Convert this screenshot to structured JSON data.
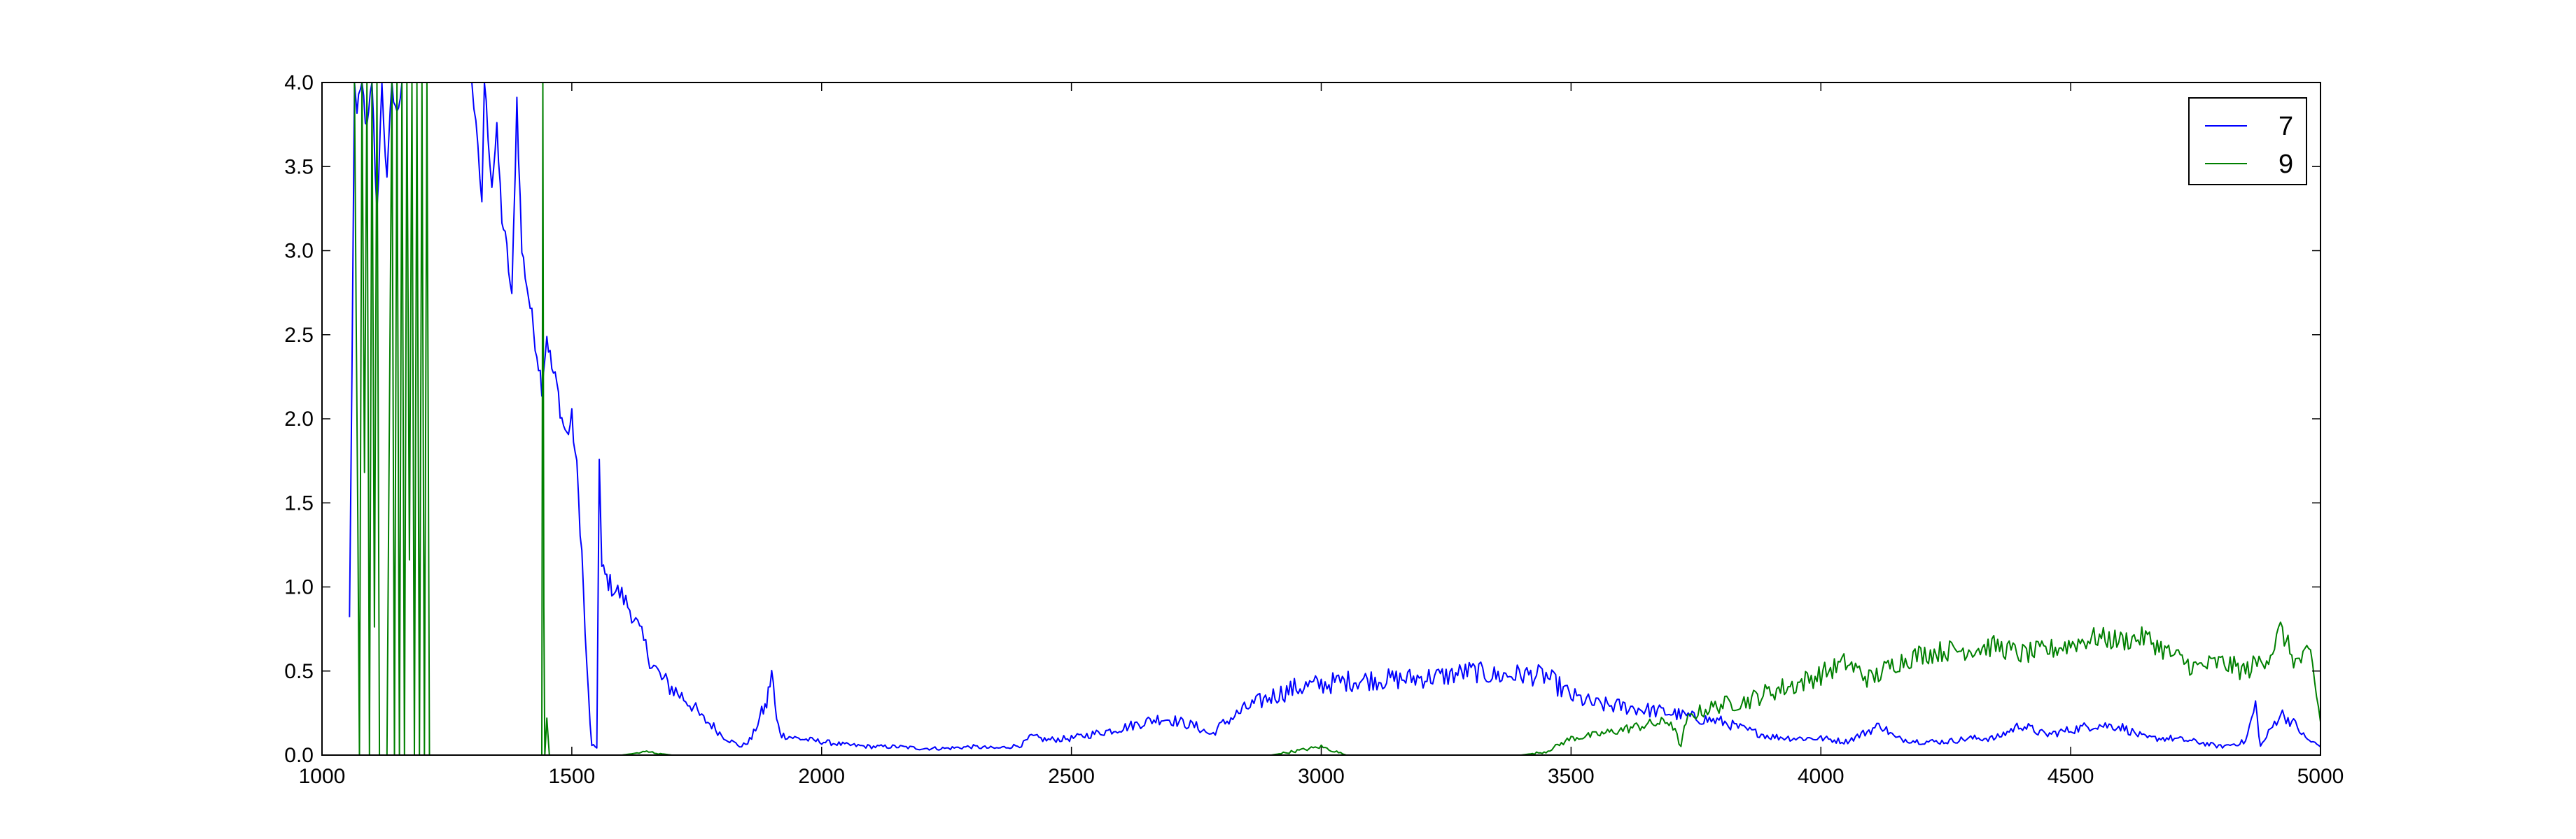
{
  "chart_data": {
    "type": "line",
    "title": "",
    "xlabel": "",
    "ylabel": "",
    "xlim": [
      1000,
      5000
    ],
    "ylim": [
      0.0,
      4.0
    ],
    "grid": false,
    "legend_placement": "top-right",
    "x_ticks": [
      "1000",
      "1500",
      "2000",
      "2500",
      "3000",
      "3500",
      "4000",
      "4500",
      "5000"
    ],
    "y_ticks": [
      "0.0",
      "0.5",
      "1.0",
      "1.5",
      "2.0",
      "2.5",
      "3.0",
      "3.5",
      "4.0"
    ],
    "series": [
      {
        "name": "7",
        "color": "#0000ff",
        "points": [
          [
            1000,
            null
          ],
          [
            1050,
            null
          ],
          [
            1055,
            0.8
          ],
          [
            1060,
            2.3
          ],
          [
            1065,
            4.0
          ],
          [
            1070,
            3.8
          ],
          [
            1080,
            4.0
          ],
          [
            1090,
            3.7
          ],
          [
            1100,
            4.0
          ],
          [
            1110,
            3.2
          ],
          [
            1120,
            4.0
          ],
          [
            1130,
            3.4
          ],
          [
            1140,
            4.0
          ],
          [
            1150,
            3.8
          ],
          [
            1160,
            4.0
          ],
          [
            1180,
            4.0
          ],
          [
            1200,
            4.0
          ],
          [
            1220,
            4.0
          ],
          [
            1260,
            4.0
          ],
          [
            1300,
            4.0
          ],
          [
            1320,
            3.3
          ],
          [
            1325,
            4.0
          ],
          [
            1340,
            3.4
          ],
          [
            1350,
            3.7
          ],
          [
            1360,
            3.2
          ],
          [
            1370,
            3.0
          ],
          [
            1380,
            2.7
          ],
          [
            1390,
            3.9
          ],
          [
            1400,
            3.0
          ],
          [
            1410,
            2.8
          ],
          [
            1420,
            2.6
          ],
          [
            1430,
            2.4
          ],
          [
            1440,
            2.2
          ],
          [
            1450,
            2.5
          ],
          [
            1460,
            2.3
          ],
          [
            1470,
            2.2
          ],
          [
            1480,
            2.0
          ],
          [
            1490,
            1.9
          ],
          [
            1500,
            2.0
          ],
          [
            1510,
            1.7
          ],
          [
            1520,
            1.2
          ],
          [
            1530,
            0.5
          ],
          [
            1540,
            0.05
          ],
          [
            1550,
            0.05
          ],
          [
            1555,
            1.75
          ],
          [
            1560,
            1.1
          ],
          [
            1570,
            1.05
          ],
          [
            1580,
            1.0
          ],
          [
            1600,
            0.95
          ],
          [
            1620,
            0.85
          ],
          [
            1640,
            0.7
          ],
          [
            1660,
            0.55
          ],
          [
            1680,
            0.45
          ],
          [
            1700,
            0.4
          ],
          [
            1720,
            0.35
          ],
          [
            1740,
            0.3
          ],
          [
            1760,
            0.22
          ],
          [
            1780,
            0.18
          ],
          [
            1800,
            0.12
          ],
          [
            1820,
            0.08
          ],
          [
            1840,
            0.05
          ],
          [
            1860,
            0.1
          ],
          [
            1880,
            0.25
          ],
          [
            1890,
            0.3
          ],
          [
            1900,
            0.5
          ],
          [
            1910,
            0.2
          ],
          [
            1920,
            0.12
          ],
          [
            1950,
            0.1
          ],
          [
            2000,
            0.08
          ],
          [
            2050,
            0.06
          ],
          [
            2100,
            0.05
          ],
          [
            2150,
            0.05
          ],
          [
            2200,
            0.04
          ],
          [
            2250,
            0.04
          ],
          [
            2300,
            0.05
          ],
          [
            2350,
            0.04
          ],
          [
            2400,
            0.06
          ],
          [
            2420,
            0.11
          ],
          [
            2450,
            0.09
          ],
          [
            2500,
            0.1
          ],
          [
            2550,
            0.13
          ],
          [
            2600,
            0.16
          ],
          [
            2650,
            0.2
          ],
          [
            2680,
            0.22
          ],
          [
            2700,
            0.21
          ],
          [
            2750,
            0.17
          ],
          [
            2780,
            0.12
          ],
          [
            2800,
            0.18
          ],
          [
            2850,
            0.28
          ],
          [
            2900,
            0.35
          ],
          [
            2950,
            0.4
          ],
          [
            3000,
            0.42
          ],
          [
            3050,
            0.44
          ],
          [
            3100,
            0.45
          ],
          [
            3150,
            0.45
          ],
          [
            3200,
            0.46
          ],
          [
            3250,
            0.47
          ],
          [
            3300,
            0.5
          ],
          [
            3350,
            0.47
          ],
          [
            3400,
            0.48
          ],
          [
            3450,
            0.47
          ],
          [
            3500,
            0.35
          ],
          [
            3550,
            0.3
          ],
          [
            3600,
            0.29
          ],
          [
            3650,
            0.27
          ],
          [
            3700,
            0.25
          ],
          [
            3750,
            0.22
          ],
          [
            3800,
            0.2
          ],
          [
            3850,
            0.15
          ],
          [
            3900,
            0.11
          ],
          [
            3950,
            0.1
          ],
          [
            4000,
            0.1
          ],
          [
            4050,
            0.08
          ],
          [
            4100,
            0.15
          ],
          [
            4120,
            0.18
          ],
          [
            4150,
            0.1
          ],
          [
            4200,
            0.08
          ],
          [
            4250,
            0.08
          ],
          [
            4300,
            0.1
          ],
          [
            4350,
            0.1
          ],
          [
            4400,
            0.18
          ],
          [
            4450,
            0.12
          ],
          [
            4500,
            0.15
          ],
          [
            4550,
            0.18
          ],
          [
            4600,
            0.17
          ],
          [
            4650,
            0.1
          ],
          [
            4700,
            0.1
          ],
          [
            4750,
            0.08
          ],
          [
            4800,
            0.05
          ],
          [
            4850,
            0.08
          ],
          [
            4870,
            0.3
          ],
          [
            4880,
            0.05
          ],
          [
            4900,
            0.15
          ],
          [
            4920,
            0.25
          ],
          [
            4950,
            0.18
          ],
          [
            4970,
            0.1
          ],
          [
            5000,
            0.05
          ]
        ]
      },
      {
        "name": "9",
        "color": "#008000",
        "points": [
          [
            1000,
            null
          ],
          [
            1060,
            null
          ],
          [
            1065,
            4.0
          ],
          [
            1075,
            0.0
          ],
          [
            1080,
            4.0
          ],
          [
            1085,
            1.7
          ],
          [
            1090,
            4.0
          ],
          [
            1095,
            0.0
          ],
          [
            1100,
            4.0
          ],
          [
            1105,
            0.8
          ],
          [
            1110,
            4.0
          ],
          [
            1115,
            0.0
          ],
          [
            1130,
            0.0
          ],
          [
            1140,
            4.0
          ],
          [
            1145,
            0.0
          ],
          [
            1150,
            4.0
          ],
          [
            1155,
            0.0
          ],
          [
            1160,
            4.0
          ],
          [
            1165,
            0.0
          ],
          [
            1170,
            4.0
          ],
          [
            1175,
            1.2
          ],
          [
            1180,
            4.0
          ],
          [
            1185,
            0.0
          ],
          [
            1190,
            4.0
          ],
          [
            1195,
            0.0
          ],
          [
            1200,
            4.0
          ],
          [
            1205,
            0.0
          ],
          [
            1210,
            4.0
          ],
          [
            1215,
            0.0
          ],
          [
            1220,
            null
          ],
          [
            1440,
            null
          ],
          [
            1440,
            0.0
          ],
          [
            1442,
            4.0
          ],
          [
            1444,
            0.9
          ],
          [
            1446,
            0.0
          ],
          [
            1450,
            0.2
          ],
          [
            1455,
            0.0
          ],
          [
            1600,
            0.0
          ],
          [
            1650,
            0.02
          ],
          [
            1700,
            0.0
          ],
          [
            2000,
            0.0
          ],
          [
            2500,
            0.0
          ],
          [
            2900,
            0.0
          ],
          [
            3000,
            0.05
          ],
          [
            3050,
            0.0
          ],
          [
            3400,
            0.0
          ],
          [
            3450,
            0.02
          ],
          [
            3500,
            0.1
          ],
          [
            3550,
            0.12
          ],
          [
            3600,
            0.15
          ],
          [
            3650,
            0.18
          ],
          [
            3700,
            0.2
          ],
          [
            3720,
            0.05
          ],
          [
            3730,
            0.2
          ],
          [
            3750,
            0.25
          ],
          [
            3800,
            0.3
          ],
          [
            3850,
            0.32
          ],
          [
            3900,
            0.38
          ],
          [
            3950,
            0.42
          ],
          [
            4000,
            0.48
          ],
          [
            4050,
            0.55
          ],
          [
            4100,
            0.45
          ],
          [
            4150,
            0.55
          ],
          [
            4200,
            0.6
          ],
          [
            4250,
            0.62
          ],
          [
            4300,
            0.63
          ],
          [
            4350,
            0.65
          ],
          [
            4400,
            0.6
          ],
          [
            4450,
            0.62
          ],
          [
            4500,
            0.66
          ],
          [
            4550,
            0.7
          ],
          [
            4600,
            0.68
          ],
          [
            4650,
            0.7
          ],
          [
            4700,
            0.6
          ],
          [
            4750,
            0.52
          ],
          [
            4800,
            0.55
          ],
          [
            4850,
            0.5
          ],
          [
            4900,
            0.6
          ],
          [
            4920,
            0.75
          ],
          [
            4950,
            0.55
          ],
          [
            4980,
            0.6
          ],
          [
            5000,
            0.2
          ]
        ]
      }
    ]
  }
}
